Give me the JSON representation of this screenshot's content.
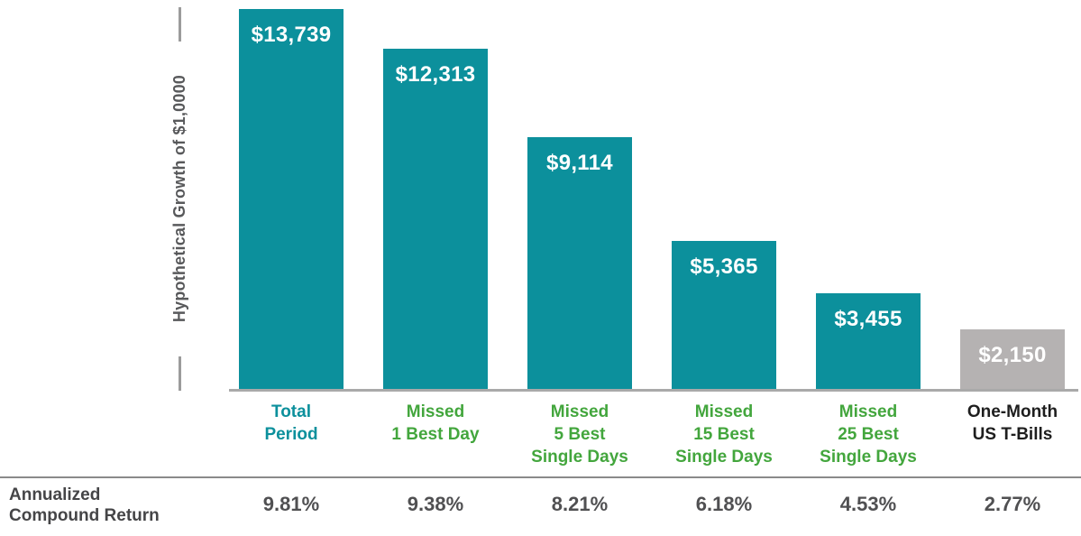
{
  "chart_data": {
    "type": "bar",
    "title": "",
    "ylabel": "Hypothetical Growth of $1,0000",
    "xlabel": "",
    "ylim": [
      0,
      14000
    ],
    "grid": false,
    "legend": "none",
    "categories": [
      "Total Period",
      "Missed 1 Best Day",
      "Missed 5 Best Single Days",
      "Missed 15 Best Single Days",
      "Missed 25 Best Single Days",
      "One-Month US T-Bills"
    ],
    "category_lines": [
      [
        "Total",
        "Period"
      ],
      [
        "Missed",
        "1 Best Day"
      ],
      [
        "Missed",
        "5 Best",
        "Single Days"
      ],
      [
        "Missed",
        "15 Best",
        "Single Days"
      ],
      [
        "Missed",
        "25 Best",
        "Single Days"
      ],
      [
        "One-Month",
        "US T-Bills"
      ]
    ],
    "values": [
      13739,
      12313,
      9114,
      5365,
      3455,
      2150
    ],
    "value_labels": [
      "$13,739",
      "$12,313",
      "$9,114",
      "$5,365",
      "$3,455",
      "$2,150"
    ],
    "bar_colors": [
      "#0c909c",
      "#0c909c",
      "#0c909c",
      "#0c909c",
      "#0c909c",
      "#b5b2b2"
    ],
    "category_label_colors": [
      "#0c909c",
      "#43a63d",
      "#43a63d",
      "#43a63d",
      "#43a63d",
      "#1e1e1e"
    ],
    "annualized_compound_return": {
      "label_lines": [
        "Annualized",
        "Compound Return"
      ],
      "values": [
        "9.81%",
        "9.38%",
        "8.21%",
        "6.18%",
        "4.53%",
        "2.77%"
      ]
    }
  },
  "colors": {
    "bar_teal": "#0c909c",
    "bar_gray": "#b5b2b2",
    "green_label": "#43a63d",
    "teal_label": "#0c909c",
    "black_label": "#1e1e1e",
    "axis_line": "#a9a9a9",
    "separator_line": "#8a8a8a",
    "axis_label_text": "#58595b",
    "footer_text": "#4a4a4c",
    "bar_value_text": "#ffffff"
  }
}
